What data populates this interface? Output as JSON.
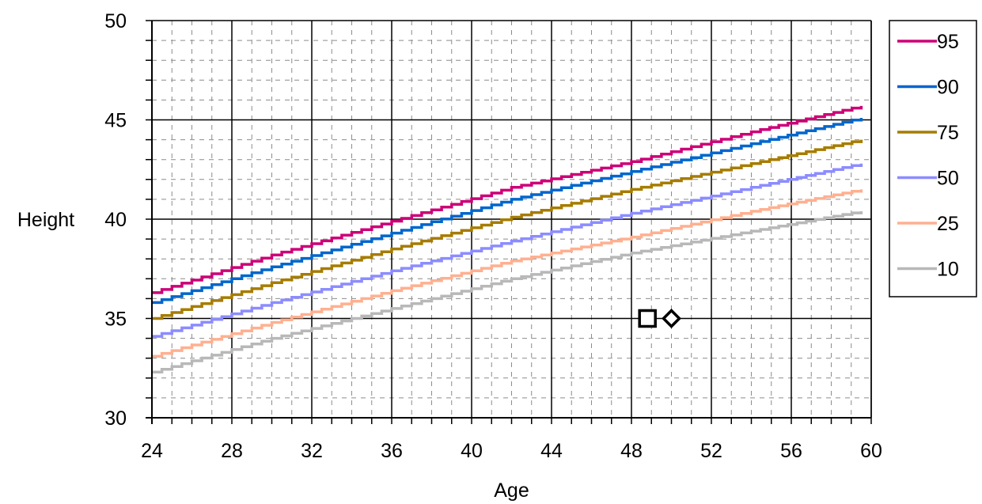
{
  "chart_data": {
    "type": "line",
    "xlabel": "Age",
    "ylabel": "Height",
    "xlim": [
      24,
      60
    ],
    "ylim": [
      30,
      50
    ],
    "x_ticks": [
      24,
      28,
      32,
      36,
      40,
      44,
      48,
      52,
      56,
      60
    ],
    "y_ticks": [
      30,
      35,
      40,
      45,
      50
    ],
    "grid": {
      "major": true,
      "minor_dashed": true
    },
    "legend_position": "top-right",
    "x": [
      24,
      30,
      36,
      42,
      48,
      54,
      59.5
    ],
    "series": [
      {
        "name": "95",
        "color": "#cc0077",
        "values": [
          36.3,
          38.2,
          39.9,
          41.6,
          42.9,
          44.4,
          45.7
        ]
      },
      {
        "name": "90",
        "color": "#0066cc",
        "values": [
          35.8,
          37.6,
          39.3,
          41.0,
          42.4,
          43.8,
          45.1
        ]
      },
      {
        "name": "75",
        "color": "#a67c00",
        "values": [
          35.0,
          36.8,
          38.5,
          40.1,
          41.5,
          42.8,
          44.0
        ]
      },
      {
        "name": "50",
        "color": "#8c8cff",
        "values": [
          34.1,
          35.8,
          37.4,
          38.9,
          40.3,
          41.6,
          42.8
        ]
      },
      {
        "name": "25",
        "color": "#ffb090",
        "values": [
          33.1,
          34.8,
          36.4,
          37.9,
          39.1,
          40.4,
          41.5
        ]
      },
      {
        "name": "10",
        "color": "#b8b8b8",
        "values": [
          32.3,
          34.0,
          35.5,
          37.0,
          38.3,
          39.4,
          40.4
        ]
      }
    ],
    "markers": [
      {
        "shape": "square",
        "x": 48.8,
        "y": 35.0
      },
      {
        "shape": "diamond",
        "x": 50.0,
        "y": 35.0
      }
    ]
  }
}
